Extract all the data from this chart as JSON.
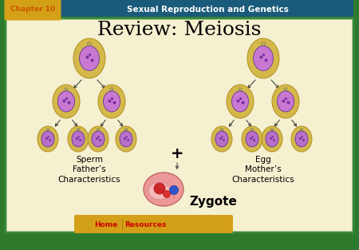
{
  "bg_outer": "#2d7a2d",
  "bg_header": "#1a5a7a",
  "bg_content": "#f5f0d0",
  "header_chapter_bg": "#d4a017",
  "header_chapter_text": "Chapter 10",
  "header_title_text": "Sexual Reproduction and Genetics",
  "header_title_color": "#ffffff",
  "header_chapter_color": "#cc5500",
  "slide_title": "Review: Meiosis",
  "slide_title_color": "#000000",
  "slide_title_fontsize": 18,
  "left_label_line1": "Sperm",
  "left_label_line2": "Father’s",
  "left_label_line3": "Characteristics",
  "right_label_line1": "Egg",
  "right_label_line2": "Mother’s",
  "right_label_line3": "Characteristics",
  "plus_text": "+",
  "zygote_text": "Zygote",
  "footer_bg": "#d4a017",
  "footer_home_text": "Home",
  "footer_resources_text": "Resources",
  "footer_arrow_color": "#bb1111",
  "cell_outer_color": "#d4b84a",
  "cell_outer_edge": "#b09020",
  "cell_inner_color": "#c878d0",
  "cell_nucleus_color": "#7030a0",
  "label_fontsize": 7.5,
  "label_color": "#000000"
}
